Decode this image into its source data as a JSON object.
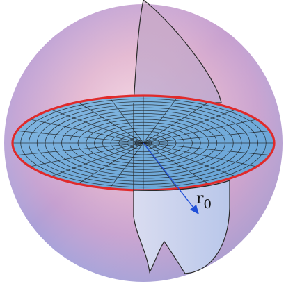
{
  "labels": {
    "radius_symbol": "r",
    "radius_subscript": "0"
  },
  "colors": {
    "background": "#ffffff",
    "sphere_pink": "#e8a6bc",
    "sphere_blue": "#9ea6dc",
    "equator_ring": "#e02a2a",
    "disk_fill": "#76b4dc",
    "disk_grid": "#1a1a1a",
    "radius_arrow": "#1f4fd8",
    "section_outline": "#2a2a2a"
  },
  "grid": {
    "rings": 16,
    "spokes": 24
  }
}
